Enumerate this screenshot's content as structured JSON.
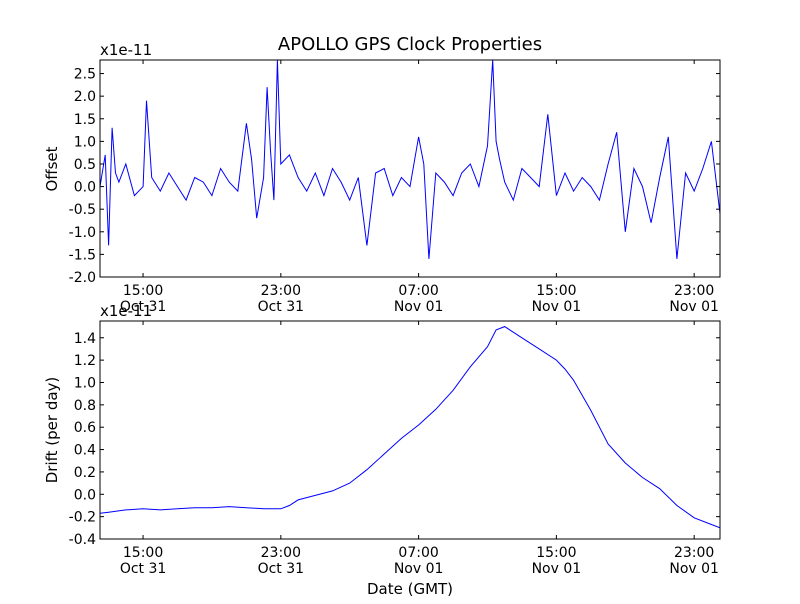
{
  "figure": {
    "title": "APOLLO GPS Clock Properties",
    "xlabel": "Date (GMT)"
  },
  "chart_data": [
    {
      "type": "line",
      "ylabel": "Offset",
      "scale_label": "x1e-11",
      "ylim": [
        -2.0,
        2.8
      ],
      "y_ticks": [
        "-2.0",
        "-1.5",
        "-1.0",
        "-0.5",
        "0.0",
        "0.5",
        "1.0",
        "1.5",
        "2.0",
        "2.5"
      ],
      "x_tick_labels": [
        {
          "time": "15:00",
          "date": "Oct 31"
        },
        {
          "time": "23:00",
          "date": "Oct 31"
        },
        {
          "time": "07:00",
          "date": "Nov 01"
        },
        {
          "time": "15:00",
          "date": "Nov 01"
        },
        {
          "time": "23:00",
          "date": "Nov 01"
        }
      ],
      "x_range_hours_oct31": [
        12.5,
        48.5
      ],
      "x_tick_hours_oct31": [
        15,
        23,
        31,
        39,
        47
      ],
      "series": [
        {
          "color": "#0000ff",
          "x_hours_oct31": [
            12.5,
            12.8,
            13.0,
            13.2,
            13.4,
            13.6,
            14.0,
            14.5,
            15.0,
            15.2,
            15.5,
            16.0,
            16.5,
            17.0,
            17.5,
            18.0,
            18.5,
            19.0,
            19.5,
            20.0,
            20.5,
            21.0,
            21.3,
            21.6,
            22.0,
            22.2,
            22.4,
            22.6,
            22.8,
            23.0,
            23.5,
            24.0,
            24.5,
            25.0,
            25.5,
            26.0,
            26.5,
            27.0,
            27.5,
            28.0,
            28.5,
            29.0,
            29.5,
            30.0,
            30.5,
            31.0,
            31.3,
            31.6,
            32.0,
            32.5,
            33.0,
            33.5,
            34.0,
            34.5,
            35.0,
            35.3,
            35.5,
            35.7,
            36.0,
            36.5,
            37.0,
            37.5,
            38.0,
            38.5,
            39.0,
            39.5,
            40.0,
            40.5,
            41.0,
            41.5,
            42.0,
            42.5,
            43.0,
            43.5,
            44.0,
            44.5,
            45.0,
            45.5,
            46.0,
            46.5,
            47.0,
            47.5,
            48.0,
            48.5
          ],
          "values": [
            0.0,
            0.7,
            -1.3,
            1.3,
            0.3,
            0.1,
            0.5,
            -0.2,
            0.0,
            1.9,
            0.2,
            -0.1,
            0.3,
            0.0,
            -0.3,
            0.2,
            0.1,
            -0.2,
            0.4,
            0.1,
            -0.1,
            1.4,
            0.6,
            -0.7,
            0.2,
            2.2,
            0.8,
            -0.3,
            2.8,
            0.5,
            0.7,
            0.2,
            -0.1,
            0.3,
            -0.2,
            0.4,
            0.1,
            -0.3,
            0.2,
            -1.3,
            0.3,
            0.4,
            -0.2,
            0.2,
            0.0,
            1.1,
            0.5,
            -1.6,
            0.3,
            0.1,
            -0.2,
            0.3,
            0.5,
            0.0,
            0.9,
            2.8,
            1.0,
            0.6,
            0.1,
            -0.3,
            0.4,
            0.2,
            0.0,
            1.6,
            -0.2,
            0.3,
            -0.1,
            0.2,
            0.0,
            -0.3,
            0.5,
            1.2,
            -1.0,
            0.4,
            0.0,
            -0.8,
            0.2,
            1.1,
            -1.6,
            0.3,
            -0.1,
            0.4,
            1.0,
            -0.6
          ]
        }
      ]
    },
    {
      "type": "line",
      "ylabel": "Drift (per day)",
      "scale_label": "x1e-11",
      "ylim": [
        -0.4,
        1.55
      ],
      "y_ticks": [
        "-0.4",
        "-0.2",
        "0.0",
        "0.2",
        "0.4",
        "0.6",
        "0.8",
        "1.0",
        "1.2",
        "1.4"
      ],
      "x_tick_labels": [
        {
          "time": "15:00",
          "date": "Oct 31"
        },
        {
          "time": "23:00",
          "date": "Oct 31"
        },
        {
          "time": "07:00",
          "date": "Nov 01"
        },
        {
          "time": "15:00",
          "date": "Nov 01"
        },
        {
          "time": "23:00",
          "date": "Nov 01"
        }
      ],
      "x_range_hours_oct31": [
        12.5,
        48.5
      ],
      "x_tick_hours_oct31": [
        15,
        23,
        31,
        39,
        47
      ],
      "series": [
        {
          "color": "#0000ff",
          "x_hours_oct31": [
            12.5,
            13.0,
            14.0,
            15.0,
            16.0,
            17.0,
            18.0,
            19.0,
            20.0,
            21.0,
            22.0,
            23.0,
            23.5,
            24.0,
            25.0,
            26.0,
            27.0,
            28.0,
            29.0,
            30.0,
            31.0,
            32.0,
            33.0,
            34.0,
            35.0,
            35.5,
            36.0,
            37.0,
            38.0,
            39.0,
            39.5,
            40.0,
            41.0,
            42.0,
            43.0,
            44.0,
            45.0,
            46.0,
            47.0,
            48.0,
            48.5
          ],
          "values": [
            -0.17,
            -0.16,
            -0.14,
            -0.13,
            -0.14,
            -0.13,
            -0.12,
            -0.12,
            -0.11,
            -0.12,
            -0.13,
            -0.13,
            -0.1,
            -0.05,
            -0.01,
            0.03,
            0.1,
            0.22,
            0.36,
            0.5,
            0.62,
            0.76,
            0.93,
            1.14,
            1.32,
            1.47,
            1.5,
            1.4,
            1.3,
            1.2,
            1.12,
            1.02,
            0.75,
            0.45,
            0.28,
            0.15,
            0.05,
            -0.1,
            -0.21,
            -0.27,
            -0.3
          ]
        }
      ]
    }
  ]
}
